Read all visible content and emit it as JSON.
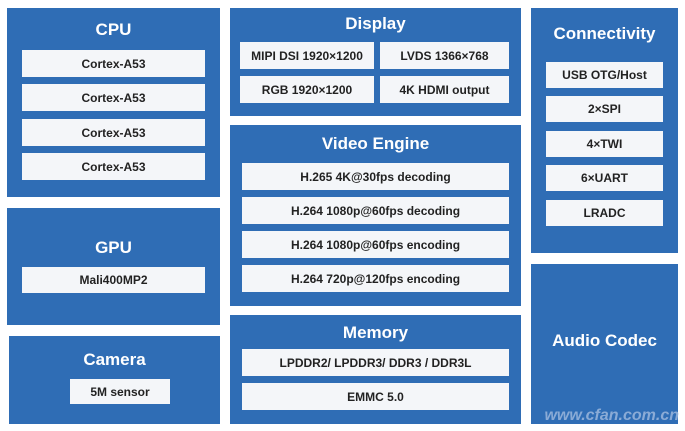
{
  "cpu": {
    "title": "CPU",
    "items": [
      "Cortex-A53",
      "Cortex-A53",
      "Cortex-A53",
      "Cortex-A53"
    ]
  },
  "gpu": {
    "title": "GPU",
    "items": [
      "Mali400MP2"
    ]
  },
  "camera": {
    "title": "Camera",
    "items": [
      "5M sensor"
    ]
  },
  "display": {
    "title": "Display",
    "items": [
      "MIPI DSI 1920×1200",
      "LVDS 1366×768",
      "RGB 1920×1200",
      "4K HDMI output"
    ]
  },
  "video": {
    "title": "Video Engine",
    "items": [
      "H.265 4K@30fps decoding",
      "H.264 1080p@60fps decoding",
      "H.264 1080p@60fps encoding",
      "H.264 720p@120fps encoding"
    ]
  },
  "memory": {
    "title": "Memory",
    "items": [
      "LPDDR2/ LPDDR3/ DDR3 / DDR3L",
      "EMMC 5.0"
    ]
  },
  "connectivity": {
    "title": "Connectivity",
    "items": [
      "USB OTG/Host",
      "2×SPI",
      "4×TWI",
      "6×UART",
      "LRADC"
    ]
  },
  "audio": {
    "title": "Audio Codec"
  },
  "watermark": "www.cfan.com.cn",
  "colors": {
    "block": "#2f6db5",
    "item": "#f4f6f9"
  }
}
